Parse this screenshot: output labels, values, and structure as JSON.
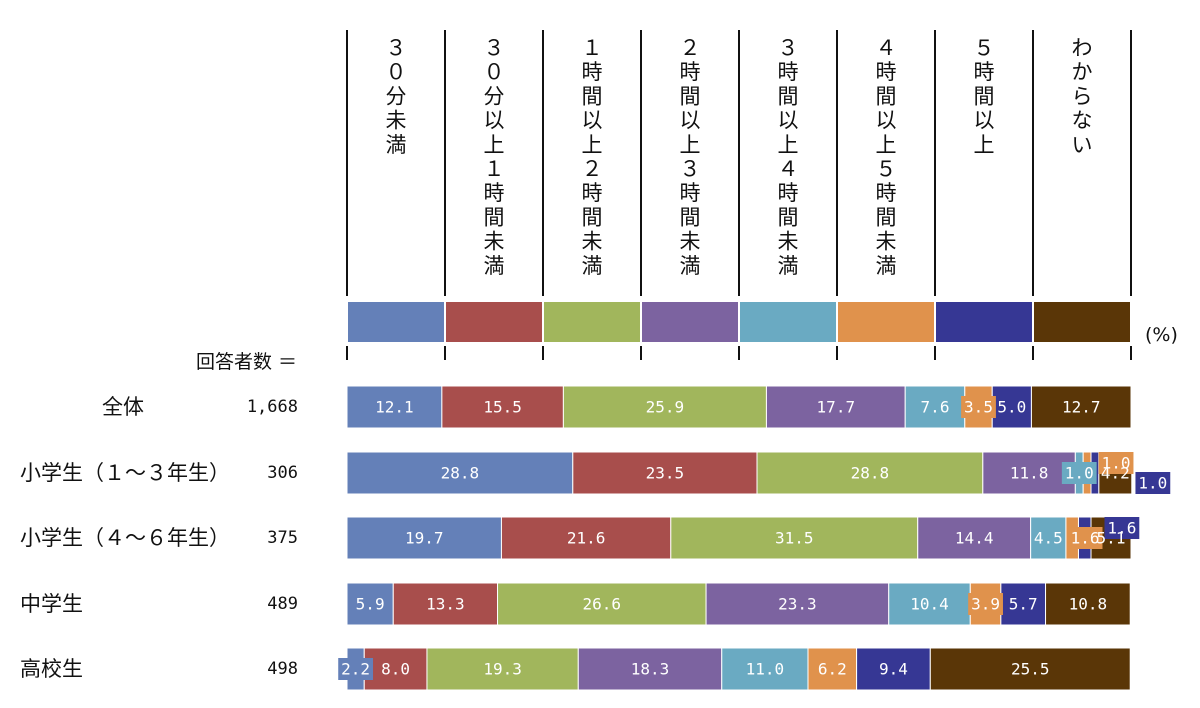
{
  "unit_label": "(%)",
  "respondents_label": "回答者数 ＝",
  "chart_data": {
    "type": "bar",
    "orientation": "horizontal",
    "stacked": true,
    "normalized": true,
    "xlim": [
      0,
      100
    ],
    "categories": [
      "全体",
      "小学生（１～３年生）",
      "小学生（４～６年生）",
      "中学生",
      "高校生"
    ],
    "counts": [
      "1,668",
      "306",
      "375",
      "489",
      "498"
    ],
    "series": [
      {
        "name": "３０分未満",
        "color": "#6480b8",
        "values": [
          12.1,
          28.8,
          19.7,
          5.9,
          2.2
        ],
        "labels": [
          "12.1",
          "28.8",
          "19.7",
          "5.9",
          "2.2"
        ]
      },
      {
        "name": "３０分以上１時間未満",
        "color": "#a84e4c",
        "values": [
          15.5,
          23.5,
          21.6,
          13.3,
          8.0
        ],
        "labels": [
          "15.5",
          "23.5",
          "21.6",
          "13.3",
          "8.0"
        ]
      },
      {
        "name": "１時間以上２時間未満",
        "color": "#a1b65c",
        "values": [
          25.9,
          28.8,
          31.5,
          26.6,
          19.3
        ],
        "labels": [
          "25.9",
          "28.8",
          "31.5",
          "26.6",
          "19.3"
        ]
      },
      {
        "name": "２時間以上３時間未満",
        "color": "#7c63a0",
        "values": [
          17.7,
          11.8,
          14.4,
          23.3,
          18.3
        ],
        "labels": [
          "17.7",
          "11.8",
          "14.4",
          "23.3",
          "18.3"
        ]
      },
      {
        "name": "３時間以上４時間未満",
        "color": "#6aaac2",
        "values": [
          7.6,
          1.0,
          4.5,
          10.4,
          11.0
        ],
        "labels": [
          "7.6",
          "1.0",
          "4.5",
          "10.4",
          "11.0"
        ]
      },
      {
        "name": "４時間以上５時間未満",
        "color": "#e0924c",
        "values": [
          3.5,
          1.0,
          1.6,
          3.9,
          6.2
        ],
        "labels": [
          "3.5",
          "1.0",
          "1.6",
          "3.9",
          "6.2"
        ]
      },
      {
        "name": "５時間以上",
        "color": "#363794",
        "values": [
          5.0,
          1.0,
          1.6,
          5.7,
          9.4
        ],
        "labels": [
          "5.0",
          "1.0",
          "1.6",
          "5.7",
          "9.4"
        ]
      },
      {
        "name": "わからない",
        "color": "#5a3607",
        "values": [
          12.7,
          4.2,
          5.1,
          10.8,
          25.5
        ],
        "labels": [
          "12.7",
          "4.2",
          "5.1",
          "10.8",
          "25.5"
        ]
      }
    ]
  }
}
